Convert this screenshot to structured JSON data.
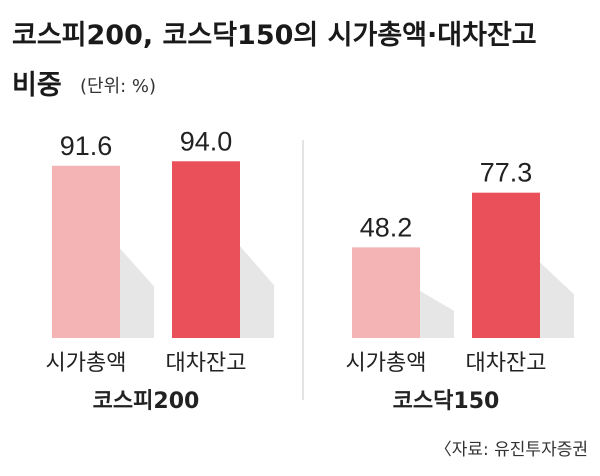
{
  "header": {
    "title_line1": "코스피200, 코스닥150의 시가총액·대차잔고",
    "title_line2": "비중",
    "unit": "(단위: %)"
  },
  "source": "〈자료: 유진투자증권",
  "colors": {
    "light": "#f4b3b5",
    "dark": "#e9505a",
    "shadow": "#e6e6e6",
    "divider": "#e4e4e4"
  },
  "chart_data": [
    {
      "type": "bar",
      "group_label": "코스피200",
      "categories": [
        "시가총액",
        "대차잔고"
      ],
      "values": [
        91.6,
        94.0
      ],
      "value_labels": [
        "91.6",
        "94.0"
      ]
    },
    {
      "type": "bar",
      "group_label": "코스닥150",
      "categories": [
        "시가총액",
        "대차잔고"
      ],
      "values": [
        48.2,
        77.3
      ],
      "value_labels": [
        "48.2",
        "77.3"
      ]
    }
  ]
}
